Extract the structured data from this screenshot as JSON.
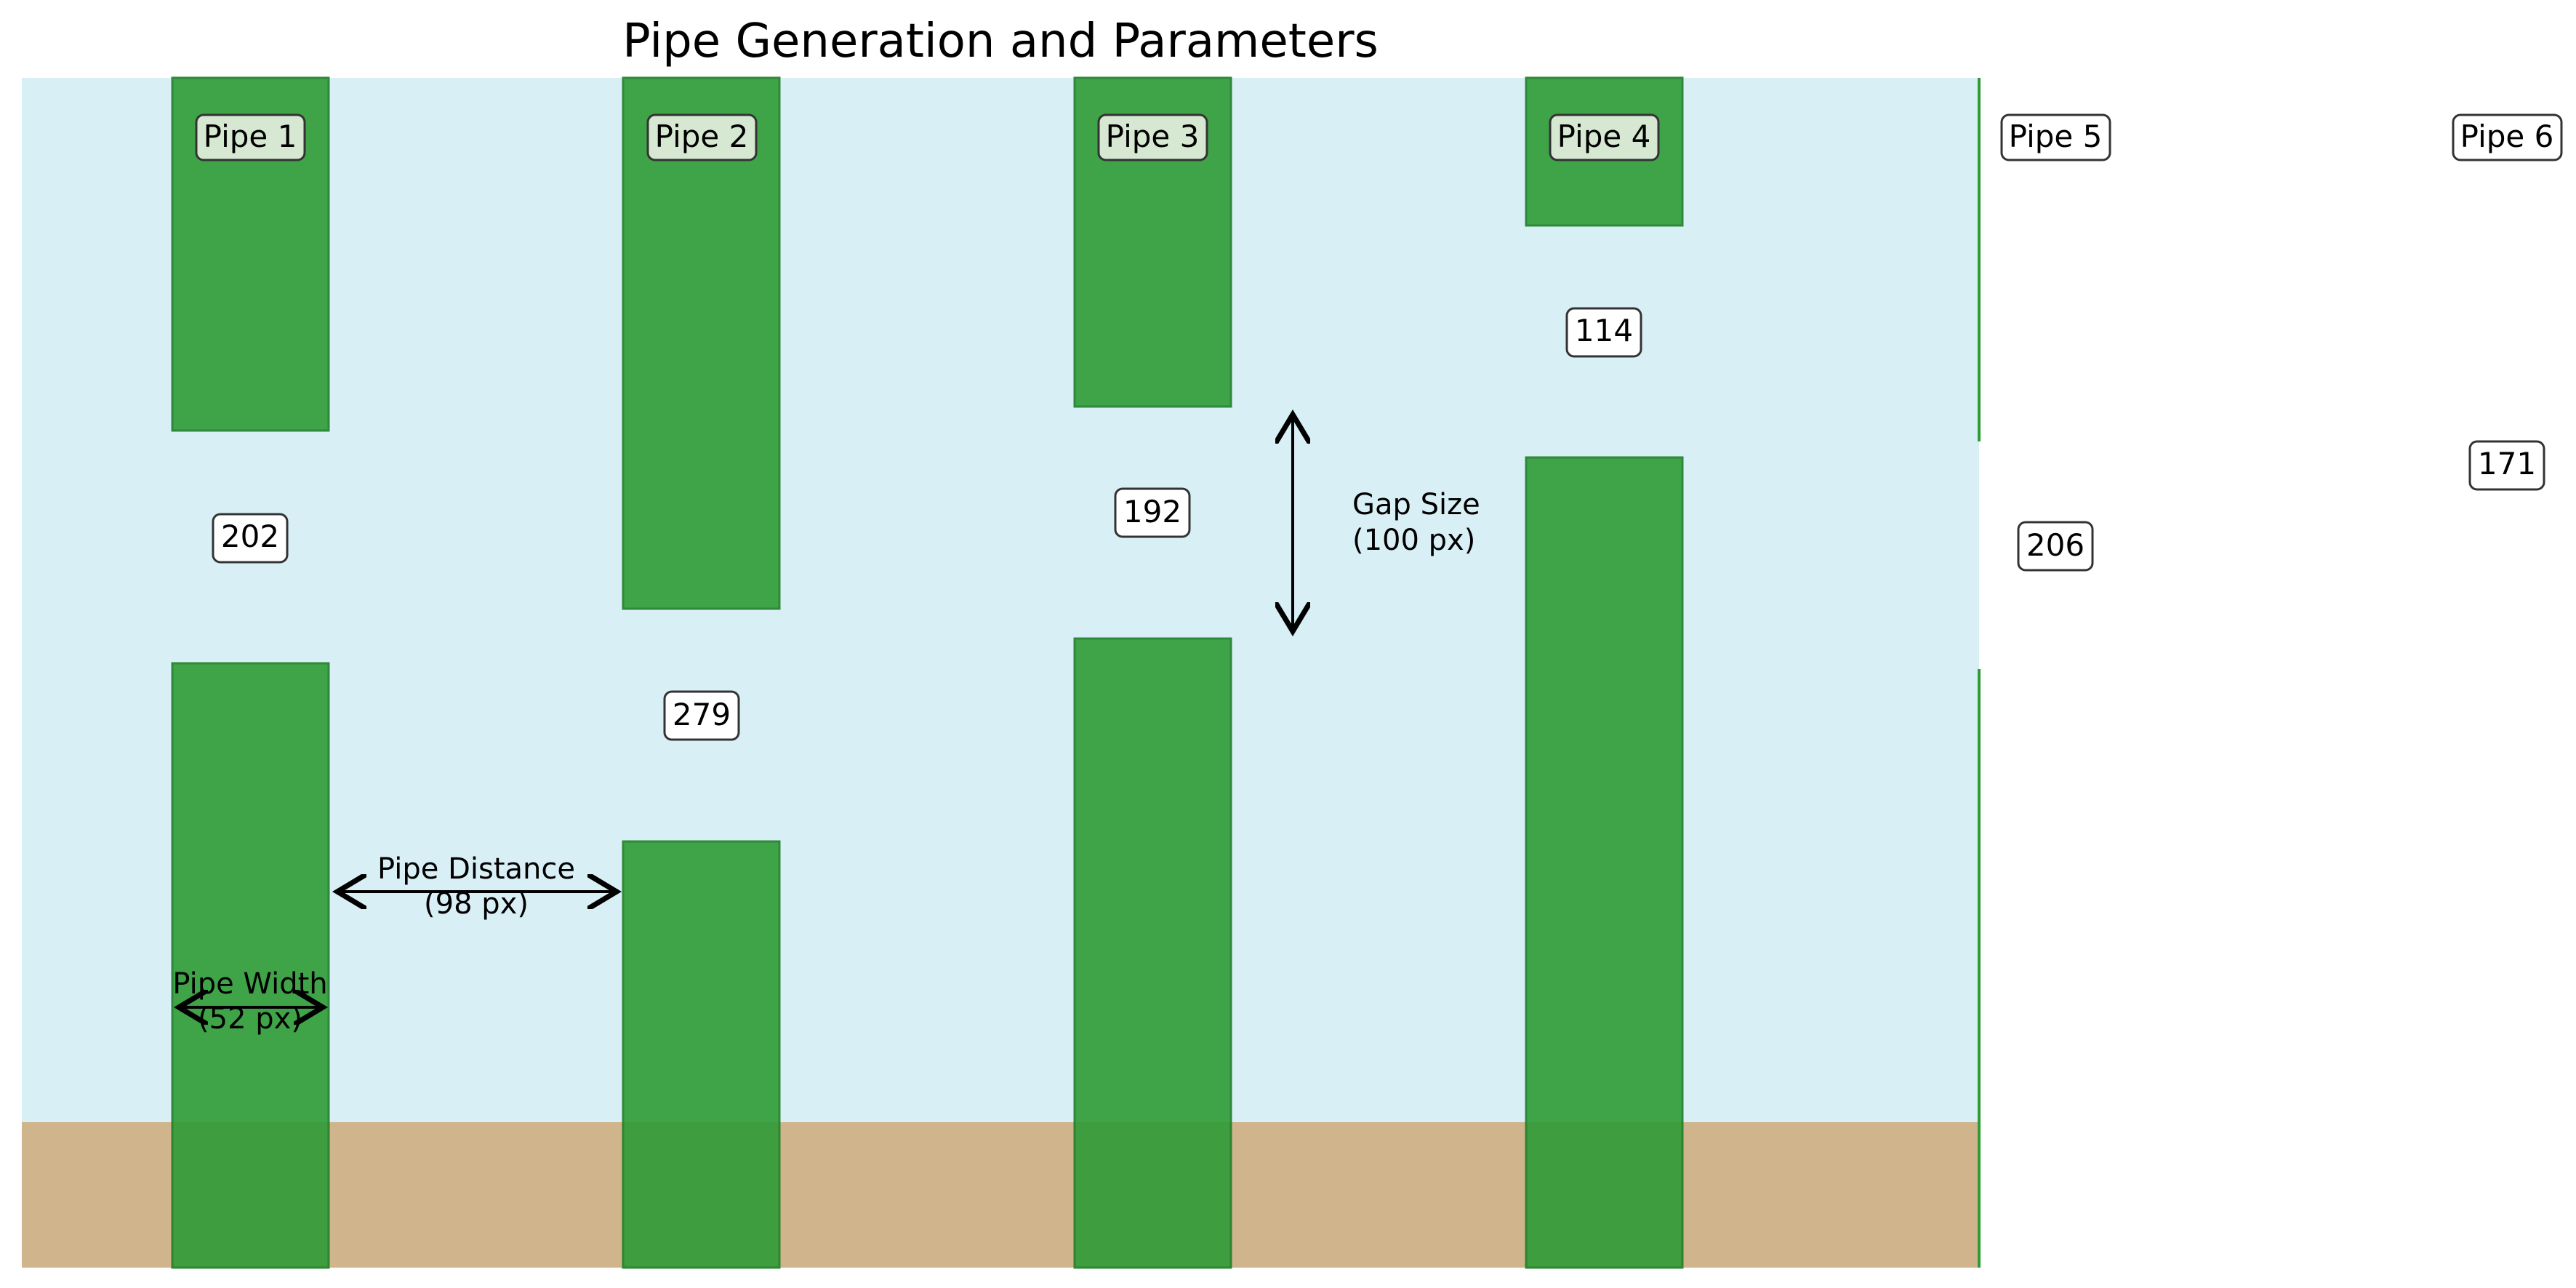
{
  "title": "Pipe Generation and Parameters",
  "colors": {
    "sky": "#d9eff6",
    "ground": "#cfb48c",
    "pipe": "#2f9b36",
    "pipe_stroke": "#1d7f26",
    "label_bg": "#ffffff",
    "label_stroke": "#333333"
  },
  "pipes": [
    {
      "label": "Pipe 1",
      "gap_value": "202"
    },
    {
      "label": "Pipe 2",
      "gap_value": "279"
    },
    {
      "label": "Pipe 3",
      "gap_value": "192"
    },
    {
      "label": "Pipe 4",
      "gap_value": "114"
    },
    {
      "label": "Pipe 5",
      "gap_value": "206"
    },
    {
      "label": "Pipe 6",
      "gap_value": "171"
    }
  ],
  "annotations": {
    "gap_size": {
      "line1": "Gap Size",
      "line2": "(100 px)"
    },
    "pipe_distance": {
      "line1": "Pipe Distance",
      "line2": "(98 px)"
    },
    "pipe_width": {
      "line1": "Pipe Width",
      "line2": "(52 px)"
    }
  }
}
